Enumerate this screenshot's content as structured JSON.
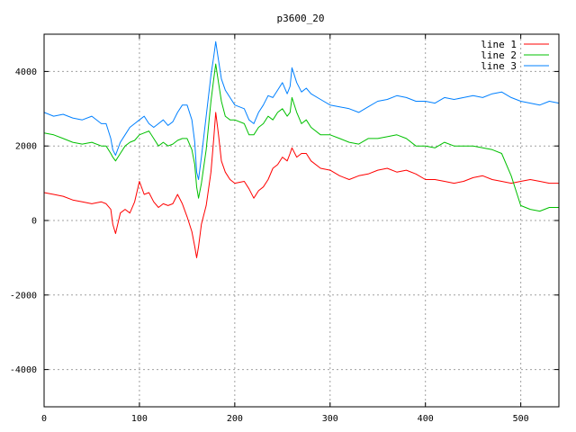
{
  "chart_data": {
    "type": "line",
    "title": "p3600_20",
    "xlabel": "",
    "ylabel": "",
    "xlim": [
      0,
      540
    ],
    "ylim": [
      -5000,
      5000
    ],
    "xticks": [
      0,
      100,
      200,
      300,
      400,
      500
    ],
    "yticks": [
      -4000,
      -2000,
      0,
      2000,
      4000
    ],
    "grid": true,
    "legend_position": "top-right",
    "colors": {
      "line 1": "#ff0000",
      "line 2": "#00c000",
      "line 3": "#0080ff"
    },
    "series": [
      {
        "name": "line 1",
        "color": "#ff0000",
        "x": [
          0,
          10,
          20,
          30,
          40,
          50,
          60,
          65,
          70,
          72,
          75,
          80,
          85,
          90,
          95,
          100,
          105,
          110,
          115,
          120,
          125,
          130,
          135,
          140,
          145,
          150,
          155,
          158,
          160,
          162,
          165,
          170,
          175,
          178,
          180,
          183,
          186,
          190,
          195,
          200,
          210,
          215,
          220,
          225,
          230,
          235,
          240,
          245,
          250,
          255,
          258,
          260,
          265,
          270,
          275,
          280,
          290,
          300,
          310,
          320,
          330,
          340,
          350,
          360,
          370,
          380,
          390,
          400,
          410,
          420,
          430,
          440,
          450,
          460,
          470,
          480,
          490,
          500,
          510,
          520,
          530,
          540
        ],
        "y": [
          750,
          700,
          650,
          550,
          500,
          450,
          500,
          450,
          300,
          -100,
          -350,
          200,
          300,
          200,
          500,
          1050,
          700,
          750,
          500,
          350,
          450,
          400,
          450,
          700,
          450,
          100,
          -300,
          -700,
          -1000,
          -700,
          -100,
          400,
          1300,
          2200,
          2900,
          2300,
          1600,
          1300,
          1100,
          1000,
          1050,
          850,
          600,
          800,
          900,
          1100,
          1400,
          1500,
          1700,
          1600,
          1800,
          1950,
          1700,
          1800,
          1800,
          1600,
          1400,
          1350,
          1200,
          1100,
          1200,
          1250,
          1350,
          1400,
          1300,
          1350,
          1250,
          1100,
          1100,
          1050,
          1000,
          1050,
          1150,
          1200,
          1100,
          1050,
          1000,
          1050,
          1100,
          1050,
          1000,
          1000
        ]
      },
      {
        "name": "line 2",
        "color": "#00c000",
        "x": [
          0,
          10,
          20,
          30,
          40,
          50,
          60,
          65,
          70,
          72,
          75,
          80,
          85,
          90,
          95,
          100,
          105,
          110,
          115,
          120,
          125,
          130,
          135,
          140,
          145,
          150,
          155,
          158,
          160,
          162,
          165,
          170,
          175,
          178,
          180,
          183,
          186,
          190,
          195,
          200,
          210,
          215,
          220,
          225,
          230,
          235,
          240,
          245,
          250,
          255,
          258,
          260,
          265,
          270,
          275,
          280,
          290,
          300,
          310,
          320,
          330,
          340,
          350,
          360,
          370,
          380,
          390,
          400,
          410,
          420,
          430,
          440,
          450,
          460,
          470,
          480,
          490,
          500,
          510,
          520,
          530,
          540
        ],
        "y": [
          2350,
          2300,
          2200,
          2100,
          2050,
          2100,
          2000,
          2000,
          1800,
          1700,
          1600,
          1800,
          2000,
          2100,
          2150,
          2300,
          2350,
          2400,
          2200,
          2000,
          2100,
          2000,
          2050,
          2150,
          2200,
          2200,
          1900,
          1500,
          900,
          600,
          1000,
          1900,
          3200,
          3800,
          4200,
          3700,
          3200,
          2800,
          2700,
          2700,
          2600,
          2300,
          2300,
          2500,
          2600,
          2800,
          2700,
          2900,
          3000,
          2800,
          2900,
          3300,
          2900,
          2600,
          2700,
          2500,
          2300,
          2300,
          2200,
          2100,
          2050,
          2200,
          2200,
          2250,
          2300,
          2200,
          2000,
          2000,
          1950,
          2100,
          2000,
          2000,
          2000,
          1950,
          1900,
          1800,
          1200,
          400,
          300,
          250,
          350,
          350
        ]
      },
      {
        "name": "line 3",
        "color": "#0080ff",
        "x": [
          0,
          10,
          20,
          30,
          40,
          50,
          60,
          65,
          70,
          72,
          75,
          80,
          85,
          90,
          95,
          100,
          105,
          110,
          115,
          120,
          125,
          130,
          135,
          140,
          145,
          150,
          155,
          158,
          160,
          162,
          165,
          170,
          175,
          178,
          180,
          183,
          186,
          190,
          195,
          200,
          210,
          215,
          220,
          225,
          230,
          235,
          240,
          245,
          250,
          255,
          258,
          260,
          265,
          270,
          275,
          280,
          290,
          300,
          310,
          320,
          330,
          340,
          350,
          360,
          370,
          380,
          390,
          400,
          410,
          420,
          430,
          440,
          450,
          460,
          470,
          480,
          490,
          500,
          510,
          520,
          530,
          540
        ],
        "y": [
          2900,
          2800,
          2850,
          2750,
          2700,
          2800,
          2600,
          2600,
          2200,
          1900,
          1750,
          2100,
          2300,
          2500,
          2600,
          2700,
          2800,
          2600,
          2500,
          2600,
          2700,
          2550,
          2650,
          2900,
          3100,
          3100,
          2700,
          2100,
          1300,
          1100,
          1700,
          2800,
          3900,
          4400,
          4800,
          4300,
          3800,
          3500,
          3300,
          3100,
          3000,
          2700,
          2600,
          2900,
          3100,
          3350,
          3300,
          3500,
          3700,
          3400,
          3600,
          4100,
          3700,
          3450,
          3550,
          3400,
          3250,
          3100,
          3050,
          3000,
          2900,
          3050,
          3200,
          3250,
          3350,
          3300,
          3200,
          3200,
          3150,
          3300,
          3250,
          3300,
          3350,
          3300,
          3400,
          3450,
          3300,
          3200,
          3150,
          3100,
          3200,
          3150
        ]
      }
    ]
  }
}
